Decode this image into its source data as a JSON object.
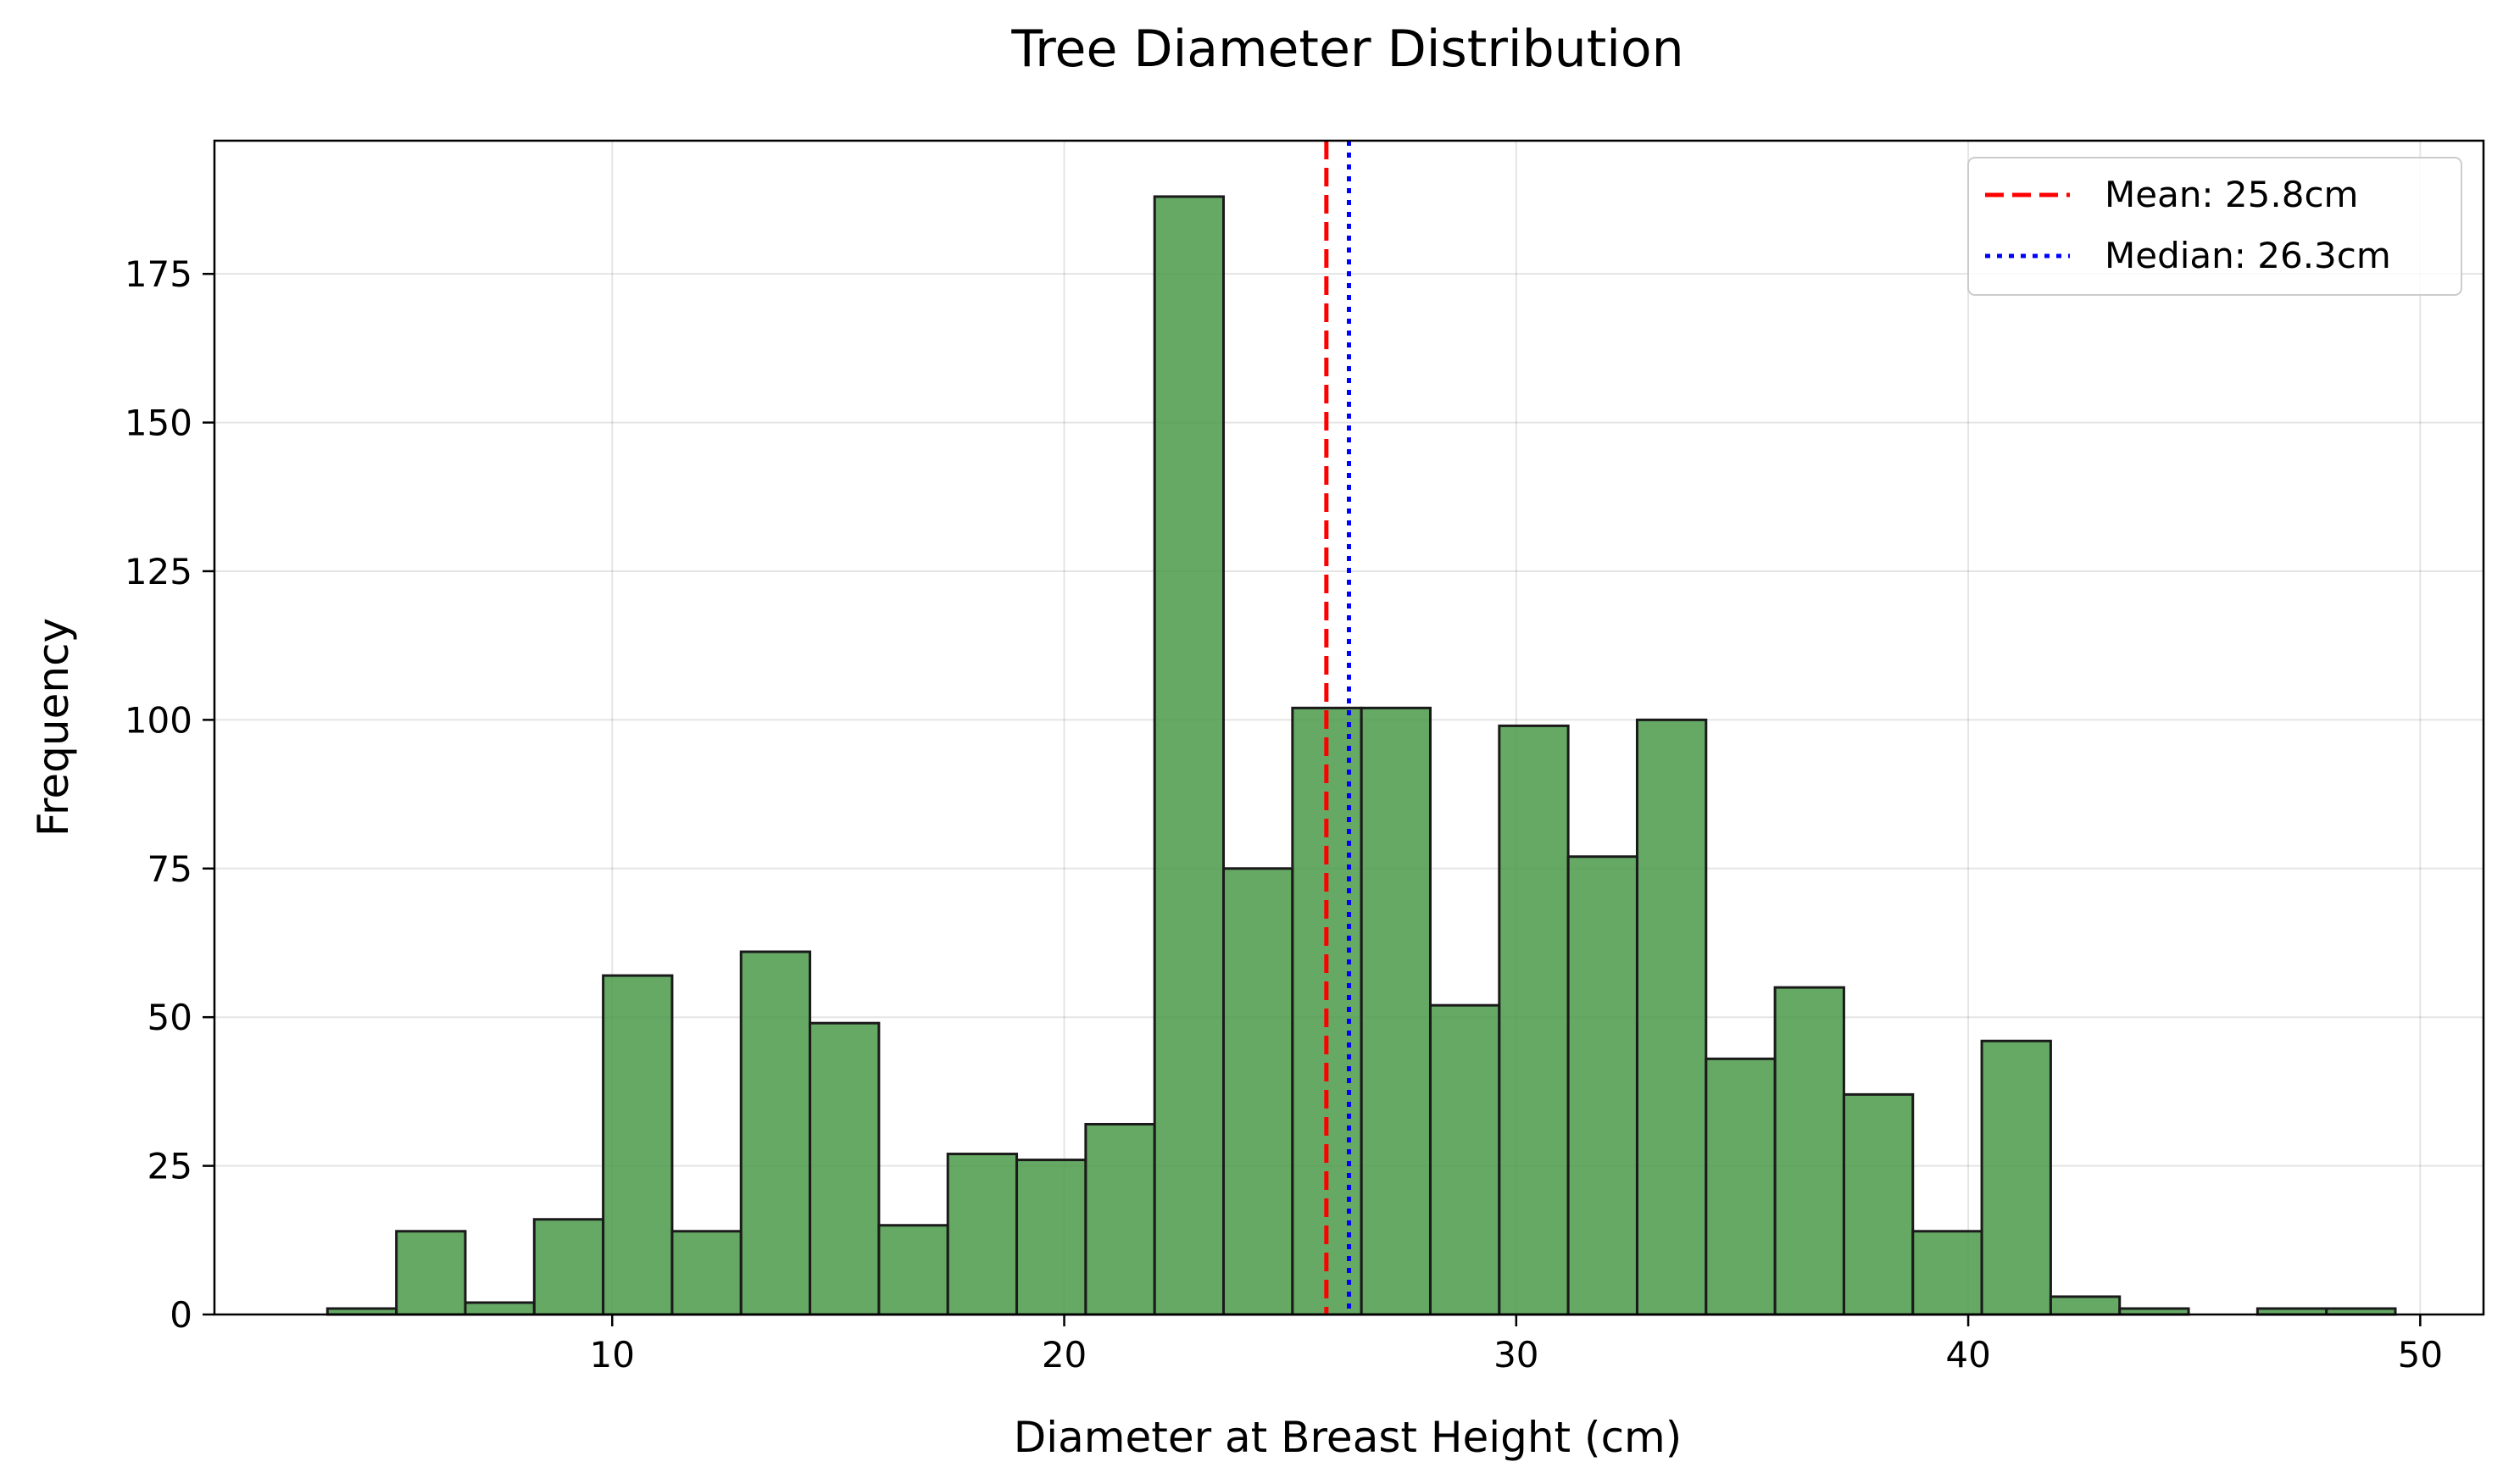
{
  "chart_data": {
    "type": "bar",
    "title": "Tree Diameter Distribution",
    "xlabel": "Diameter at Breast Height (cm)",
    "ylabel": "Frequency",
    "xlim": [
      1.2,
      51.4
    ],
    "ylim": [
      0,
      197.4
    ],
    "xticks": [
      10,
      20,
      30,
      40,
      50
    ],
    "yticks": [
      0,
      25,
      50,
      75,
      100,
      125,
      150,
      175
    ],
    "grid": true,
    "legend_position": "top-right",
    "bin_start": 3.7,
    "bin_width": 1.525,
    "counts": [
      1,
      14,
      2,
      16,
      57,
      14,
      61,
      49,
      15,
      27,
      26,
      32,
      188,
      75,
      102,
      102,
      52,
      99,
      77,
      100,
      43,
      55,
      37,
      14,
      46,
      3,
      1,
      0,
      1,
      1
    ],
    "bar_color": "#4a9a4a",
    "bar_edge_color": "#1a1a1a",
    "reference_lines": [
      {
        "label": "Mean: 25.8cm",
        "value": 25.8,
        "color": "#ff0000",
        "style": "dashed"
      },
      {
        "label": "Median: 26.3cm",
        "value": 26.3,
        "color": "#0000ff",
        "style": "dotted"
      }
    ]
  }
}
